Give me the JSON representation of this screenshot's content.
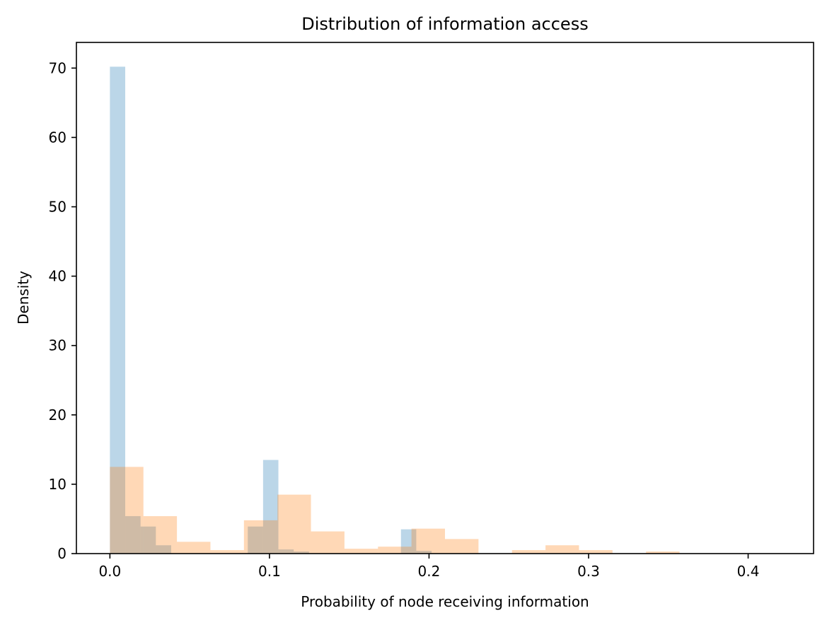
{
  "chart_data": {
    "type": "histogram",
    "title": "Distribution of information access",
    "xlabel": "Probability of node receiving information",
    "ylabel": "Density",
    "xlim": [
      -0.021,
      0.441
    ],
    "ylim": [
      0,
      73.7
    ],
    "xticks": [
      0.0,
      0.1,
      0.2,
      0.3,
      0.4
    ],
    "xtick_labels": [
      "0.0",
      "0.1",
      "0.2",
      "0.3",
      "0.4"
    ],
    "yticks": [
      0,
      10,
      20,
      30,
      40,
      50,
      60,
      70
    ],
    "ytick_labels": [
      "0",
      "10",
      "20",
      "30",
      "40",
      "50",
      "60",
      "70"
    ],
    "grid": false,
    "series": [
      {
        "color": "#1f77b4",
        "alpha": 0.3,
        "bins": [
          {
            "x0": 0.0,
            "x1": 0.0096,
            "value": 70.2
          },
          {
            "x0": 0.0096,
            "x1": 0.0192,
            "value": 5.4
          },
          {
            "x0": 0.0192,
            "x1": 0.0288,
            "value": 3.9
          },
          {
            "x0": 0.0288,
            "x1": 0.0384,
            "value": 1.2
          },
          {
            "x0": 0.0864,
            "x1": 0.096,
            "value": 3.9
          },
          {
            "x0": 0.096,
            "x1": 0.1056,
            "value": 13.5
          },
          {
            "x0": 0.1056,
            "x1": 0.1152,
            "value": 0.6
          },
          {
            "x0": 0.1152,
            "x1": 0.1248,
            "value": 0.3
          },
          {
            "x0": 0.1824,
            "x1": 0.192,
            "value": 3.5
          },
          {
            "x0": 0.192,
            "x1": 0.2016,
            "value": 0.4
          }
        ]
      },
      {
        "color": "#ff7f0e",
        "alpha": 0.3,
        "bins": [
          {
            "x0": 0.0,
            "x1": 0.021,
            "value": 12.5
          },
          {
            "x0": 0.021,
            "x1": 0.042,
            "value": 5.4
          },
          {
            "x0": 0.042,
            "x1": 0.063,
            "value": 1.7
          },
          {
            "x0": 0.063,
            "x1": 0.084,
            "value": 0.5
          },
          {
            "x0": 0.084,
            "x1": 0.105,
            "value": 4.8
          },
          {
            "x0": 0.105,
            "x1": 0.126,
            "value": 8.5
          },
          {
            "x0": 0.126,
            "x1": 0.147,
            "value": 3.2
          },
          {
            "x0": 0.147,
            "x1": 0.168,
            "value": 0.7
          },
          {
            "x0": 0.168,
            "x1": 0.189,
            "value": 1.0
          },
          {
            "x0": 0.189,
            "x1": 0.21,
            "value": 3.6
          },
          {
            "x0": 0.21,
            "x1": 0.231,
            "value": 2.1
          },
          {
            "x0": 0.231,
            "x1": 0.252,
            "value": 0.0
          },
          {
            "x0": 0.252,
            "x1": 0.273,
            "value": 0.5
          },
          {
            "x0": 0.273,
            "x1": 0.294,
            "value": 1.2
          },
          {
            "x0": 0.294,
            "x1": 0.315,
            "value": 0.5
          },
          {
            "x0": 0.315,
            "x1": 0.336,
            "value": 0.0
          },
          {
            "x0": 0.336,
            "x1": 0.357,
            "value": 0.3
          }
        ]
      }
    ]
  }
}
